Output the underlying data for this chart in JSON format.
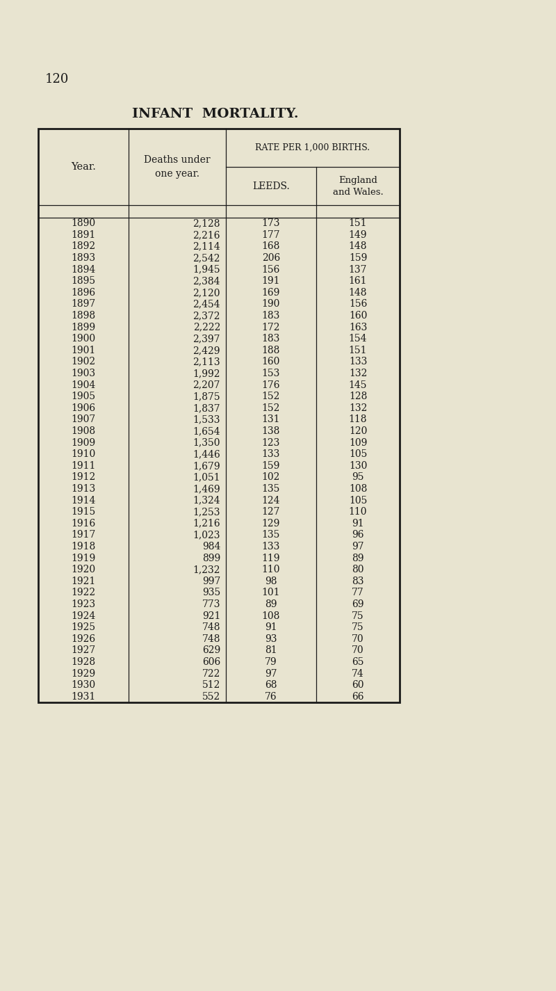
{
  "title_part1": "I",
  "title_part2": "NFANT",
  "title_part3": "  M",
  "title_part4": "ORTALITY",
  "title_full": "Infant Mortality.",
  "page_number": "120",
  "rate_header": "RATE PER 1,000 BIRTHS.",
  "rows": [
    [
      "1890",
      "2,128",
      "173",
      "151"
    ],
    [
      "1891",
      "2,216",
      "177",
      "149"
    ],
    [
      "1892",
      "2,114",
      "168",
      "148"
    ],
    [
      "1893",
      "2,542",
      "206",
      "159"
    ],
    [
      "1894",
      "1,945",
      "156",
      "137"
    ],
    [
      "1895",
      "2,384",
      "191",
      "161"
    ],
    [
      "1896",
      "2,120",
      "169",
      "148"
    ],
    [
      "1897",
      "2,454",
      "190",
      "156"
    ],
    [
      "1898",
      "2,372",
      "183",
      "160"
    ],
    [
      "1899",
      "2,222",
      "172",
      "163"
    ],
    [
      "1900",
      "2,397",
      "183",
      "154"
    ],
    [
      "1901",
      "2,429",
      "188",
      "151"
    ],
    [
      "1902",
      "2,113",
      "160",
      "133"
    ],
    [
      "1903",
      "1,992",
      "153",
      "132"
    ],
    [
      "1904",
      "2,207",
      "176",
      "145"
    ],
    [
      "1905",
      "1,875",
      "152",
      "128"
    ],
    [
      "1906",
      "1,837",
      "152",
      "132"
    ],
    [
      "1907",
      "1,533",
      "131",
      "118"
    ],
    [
      "1908",
      "1,654",
      "138",
      "120"
    ],
    [
      "1909",
      "1,350",
      "123",
      "109"
    ],
    [
      "1910",
      "1,446",
      "133",
      "105"
    ],
    [
      "1911",
      "1,679",
      "159",
      "130"
    ],
    [
      "1912",
      "1,051",
      "102",
      "95"
    ],
    [
      "1913",
      "1,469",
      "135",
      "108"
    ],
    [
      "1914",
      "1,324",
      "124",
      "105"
    ],
    [
      "1915",
      "1,253",
      "127",
      "110"
    ],
    [
      "1916",
      "1,216",
      "129",
      "91"
    ],
    [
      "1917",
      "1,023",
      "135",
      "96"
    ],
    [
      "1918",
      "984",
      "133",
      "97"
    ],
    [
      "1919",
      "899",
      "119",
      "89"
    ],
    [
      "1920",
      "1,232",
      "110",
      "80"
    ],
    [
      "1921",
      "997",
      "98",
      "83"
    ],
    [
      "1922",
      "935",
      "101",
      "77"
    ],
    [
      "1923",
      "773",
      "89",
      "69"
    ],
    [
      "1924",
      "921",
      "108",
      "75"
    ],
    [
      "1925",
      "748",
      "91",
      "75"
    ],
    [
      "1926",
      "748",
      "93",
      "70"
    ],
    [
      "1927",
      "629",
      "81",
      "70"
    ],
    [
      "1928",
      "606",
      "79",
      "65"
    ],
    [
      "1929",
      "722",
      "97",
      "74"
    ],
    [
      "1930",
      "512",
      "68",
      "60"
    ],
    [
      "1931",
      "552",
      "76",
      "66"
    ]
  ],
  "bg_color": "#e8e4d0",
  "text_color": "#1a1a1a",
  "table_bg": "#e8e4d0",
  "line_color": "#1a1a1a",
  "fig_width": 8.0,
  "fig_height": 14.25,
  "dpi": 100
}
